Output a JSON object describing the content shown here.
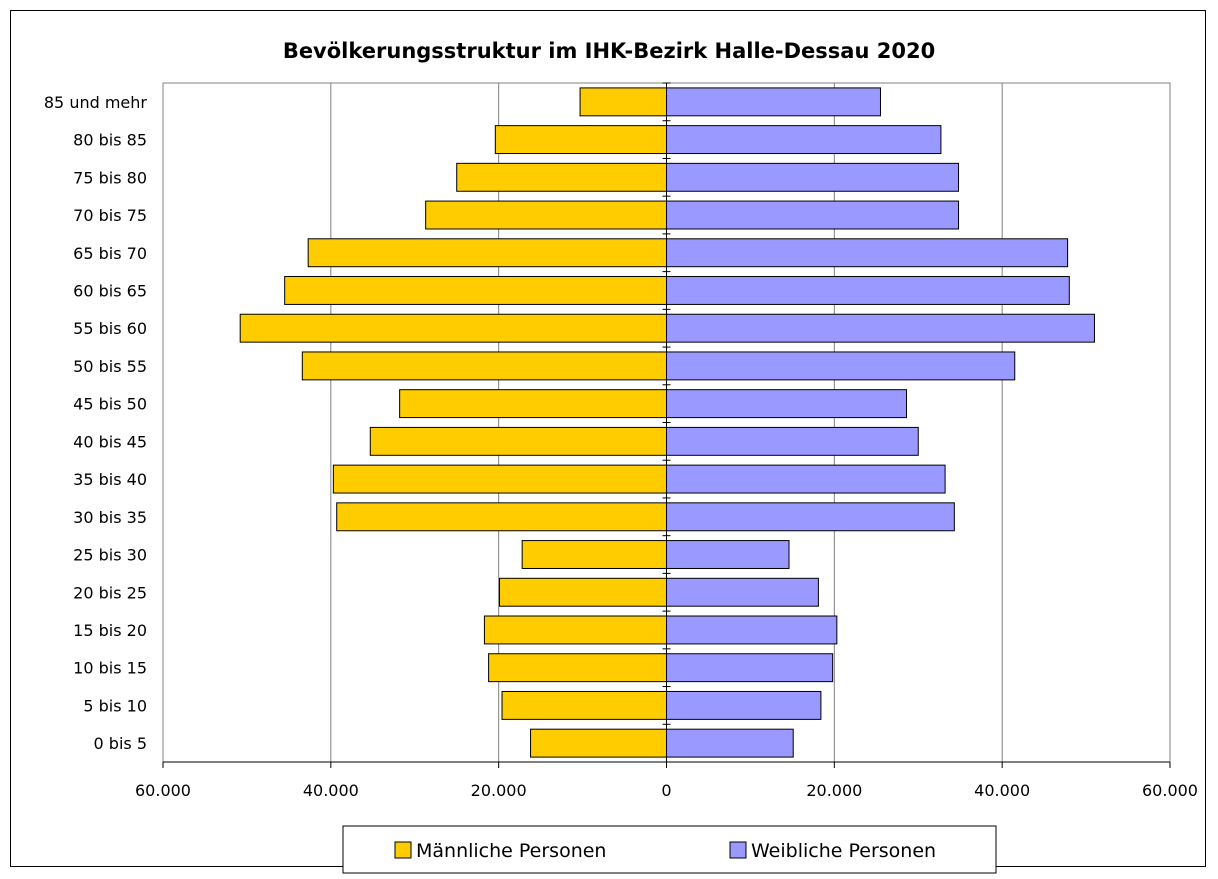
{
  "chart_data": {
    "type": "bar",
    "orientation": "horizontal",
    "subtype": "population-pyramid",
    "title": "Bevölkerungsstruktur im IHK-Bezirk Halle-Dessau 2020",
    "categories": [
      "85 und mehr",
      "80 bis 85",
      "75 bis 80",
      "70 bis 75",
      "65 bis 70",
      "60 bis 65",
      "55 bis 60",
      "50 bis 55",
      "45 bis 50",
      "40 bis 45",
      "35 bis 40",
      "30 bis 35",
      "25 bis 30",
      "20 bis 25",
      "15 bis 20",
      "10 bis 15",
      "5 bis 10",
      "0 bis 5"
    ],
    "series": [
      {
        "name": "Männliche Personen",
        "color": "#FFCC00",
        "side": "left",
        "values": [
          10300,
          20400,
          25000,
          28700,
          42700,
          45500,
          50800,
          43400,
          31800,
          35300,
          39700,
          39300,
          17200,
          19900,
          21700,
          21200,
          19600,
          16200
        ]
      },
      {
        "name": "Weibliche Personen",
        "color": "#9999FF",
        "side": "right",
        "values": [
          25500,
          32700,
          34800,
          34800,
          47800,
          48000,
          51000,
          41500,
          28600,
          30000,
          33200,
          34300,
          14600,
          18100,
          20300,
          19800,
          18400,
          15100
        ]
      }
    ],
    "x_ticks": [
      "60.000",
      "40.000",
      "20.000",
      "0",
      "20.000",
      "40.000",
      "60.000"
    ],
    "xlim": [
      -60000,
      60000
    ],
    "grid": "vertical major gridlines",
    "legend": "bottom",
    "bar_border_color": "#000000"
  }
}
